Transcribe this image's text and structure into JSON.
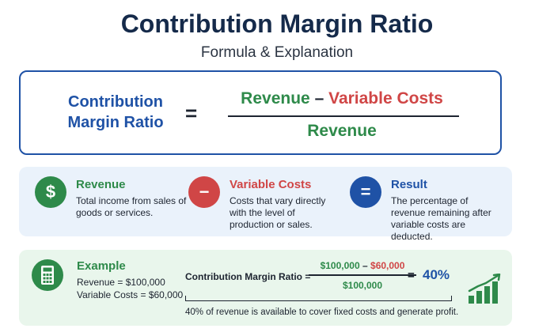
{
  "header": {
    "title": "Contribution Margin Ratio",
    "subtitle": "Formula & Explanation"
  },
  "formula": {
    "lhs_line1": "Contribution",
    "lhs_line2": "Margin Ratio",
    "equals": "=",
    "numerator_revenue": "Revenue",
    "numerator_minus": "–",
    "numerator_costs": "Variable Costs",
    "denominator": "Revenue"
  },
  "definitions": [
    {
      "icon": "dollar-icon",
      "symbol": "$",
      "color": "#2e8a4a",
      "title": "Revenue",
      "description": "Total income from sales of goods or services."
    },
    {
      "icon": "minus-icon",
      "symbol": "−",
      "color": "#d04646",
      "title": "Variable Costs",
      "description": "Costs that vary directly with the level of production or sales."
    },
    {
      "icon": "equals-icon",
      "symbol": "=",
      "color": "#1f52a6",
      "title": "Result",
      "description": "The percentage of revenue remaining after variable costs are deducted."
    }
  ],
  "example": {
    "icon": "calculator-icon",
    "title": "Example",
    "revenue_line": "Revenue = $100,000",
    "costs_line": "Variable Costs = $60,000",
    "lhs": "Contribution Margin Ratio =",
    "numerator_revenue": "$100,000",
    "numerator_minus": "–",
    "numerator_costs": "$60,000",
    "denominator": "$100,000",
    "equals": "=",
    "result": "40%",
    "note": "40% of revenue is available to cover fixed costs and generate profit.",
    "growth_icon": "growth-chart-icon"
  },
  "colors": {
    "title": "#152a4a",
    "blue": "#1f52a6",
    "green": "#2e8a4a",
    "red": "#d04646"
  }
}
